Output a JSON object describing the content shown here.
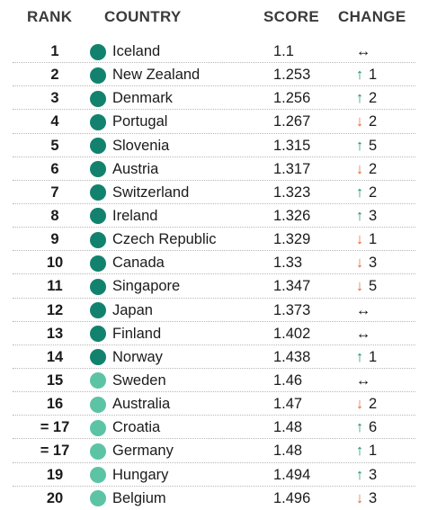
{
  "colors": {
    "dark_teal": "#12826e",
    "light_teal": "#5cc4a5",
    "up_arrow": "#1a8a6e",
    "down_arrow": "#e06a3c"
  },
  "header": {
    "rank": "RANK",
    "country": "COUNTRY",
    "score": "SCORE",
    "change": "CHANGE"
  },
  "rows": [
    {
      "rank": "1",
      "country": "Iceland",
      "score": "1.1",
      "dot": "dark",
      "dir": "same",
      "change": ""
    },
    {
      "rank": "2",
      "country": "New Zealand",
      "score": "1.253",
      "dot": "dark",
      "dir": "up",
      "change": "1"
    },
    {
      "rank": "3",
      "country": "Denmark",
      "score": "1.256",
      "dot": "dark",
      "dir": "up",
      "change": "2"
    },
    {
      "rank": "4",
      "country": "Portugal",
      "score": "1.267",
      "dot": "dark",
      "dir": "down",
      "change": "2"
    },
    {
      "rank": "5",
      "country": "Slovenia",
      "score": "1.315",
      "dot": "dark",
      "dir": "up",
      "change": "5"
    },
    {
      "rank": "6",
      "country": "Austria",
      "score": "1.317",
      "dot": "dark",
      "dir": "down",
      "change": "2"
    },
    {
      "rank": "7",
      "country": "Switzerland",
      "score": "1.323",
      "dot": "dark",
      "dir": "up",
      "change": "2"
    },
    {
      "rank": "8",
      "country": "Ireland",
      "score": "1.326",
      "dot": "dark",
      "dir": "up",
      "change": "3"
    },
    {
      "rank": "9",
      "country": "Czech Republic",
      "score": "1.329",
      "dot": "dark",
      "dir": "down",
      "change": "1"
    },
    {
      "rank": "10",
      "country": "Canada",
      "score": "1.33",
      "dot": "dark",
      "dir": "down",
      "change": "3"
    },
    {
      "rank": "11",
      "country": "Singapore",
      "score": "1.347",
      "dot": "dark",
      "dir": "down",
      "change": "5"
    },
    {
      "rank": "12",
      "country": "Japan",
      "score": "1.373",
      "dot": "dark",
      "dir": "same",
      "change": ""
    },
    {
      "rank": "13",
      "country": "Finland",
      "score": "1.402",
      "dot": "dark",
      "dir": "same",
      "change": ""
    },
    {
      "rank": "14",
      "country": "Norway",
      "score": "1.438",
      "dot": "dark",
      "dir": "up",
      "change": "1"
    },
    {
      "rank": "15",
      "country": "Sweden",
      "score": "1.46",
      "dot": "light",
      "dir": "same",
      "change": ""
    },
    {
      "rank": "16",
      "country": "Australia",
      "score": "1.47",
      "dot": "light",
      "dir": "down",
      "change": "2"
    },
    {
      "rank": "= 17",
      "country": "Croatia",
      "score": "1.48",
      "dot": "light",
      "dir": "up",
      "change": "6"
    },
    {
      "rank": "= 17",
      "country": "Germany",
      "score": "1.48",
      "dot": "light",
      "dir": "up",
      "change": "1"
    },
    {
      "rank": "19",
      "country": "Hungary",
      "score": "1.494",
      "dot": "light",
      "dir": "up",
      "change": "3"
    },
    {
      "rank": "20",
      "country": "Belgium",
      "score": "1.496",
      "dot": "light",
      "dir": "down",
      "change": "3"
    }
  ]
}
